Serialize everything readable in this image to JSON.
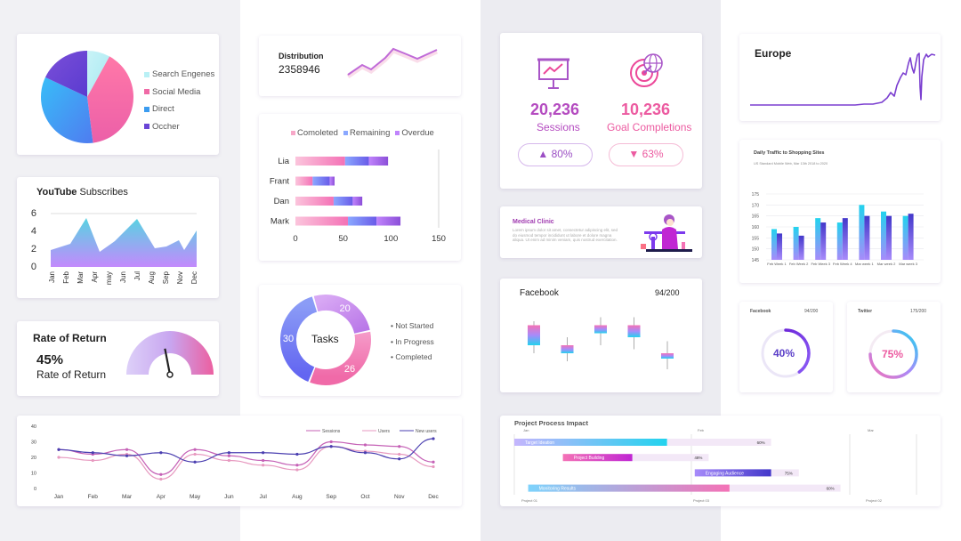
{
  "colors": {
    "pink": "#f472b6",
    "purple": "#7c3aed",
    "blue": "#60a5fa",
    "cyan": "#22d3ee",
    "violet": "#8b5cf6"
  },
  "pie_card": {
    "legend": [
      "Search Engenes",
      "Social Media",
      "Direct",
      "Occher"
    ],
    "legend_colors": [
      "#b9f0f5",
      "#f06aa6",
      "#3b9cf0",
      "#6a45d6"
    ],
    "values": [
      8,
      40,
      34,
      18
    ]
  },
  "youtube": {
    "title_bold": "YouTube",
    "title_rest": " Subscribes",
    "y_ticks": [
      "6",
      "4",
      "2",
      "0"
    ],
    "months": [
      "Jan",
      "Feb",
      "Mar",
      "Apr",
      "may",
      "Jun",
      "Jul",
      "Aug",
      "Sep",
      "Nov",
      "Dec"
    ]
  },
  "ror": {
    "title": "Rate of Return",
    "value": "45%",
    "subtitle": "Rate of Return",
    "gauge_value": 45
  },
  "distribution": {
    "title": "Distribution",
    "value": "2358946"
  },
  "tasks_bar": {
    "legend": [
      "Comoleted",
      "Remaining",
      "Overdue"
    ],
    "names": [
      "Lia",
      "Frant",
      "Dan",
      "Mark"
    ],
    "x_ticks": [
      "0",
      "50",
      "100",
      "150"
    ],
    "rows": [
      [
        52,
        25,
        20
      ],
      [
        18,
        18,
        5
      ],
      [
        40,
        20,
        10
      ],
      [
        55,
        30,
        25
      ]
    ],
    "xmax": 150
  },
  "donut": {
    "center": "Tasks",
    "values": [
      30,
      20,
      26
    ],
    "labels": [
      "30",
      "20",
      "26"
    ],
    "legend": [
      "Not Started",
      "In Progress",
      "Completed"
    ]
  },
  "stats": {
    "sessions_value": "20,236",
    "sessions_label": "Sessions",
    "goal_value": "10,236",
    "goal_label": "Goal Completions",
    "up_pill": "▲ 80%",
    "down_pill": "▼ 63%"
  },
  "medical": {
    "title": "Medical Clinic",
    "body": "Lorem ipsum dolor sit amet, consectetur adipiscing elit, sed do eiusmod tempor incididunt ut labore et dolore magna aliqua. Ut enim ad minim veniam, quis nostrud exercitation."
  },
  "facebook_candle": {
    "title": "Facebook",
    "count": "94/200",
    "candles": [
      [
        90,
        96,
        88,
        95
      ],
      [
        88,
        92,
        86,
        90
      ],
      [
        93,
        97,
        90,
        95
      ],
      [
        92,
        97,
        89,
        95
      ],
      [
        87,
        91,
        84,
        88
      ]
    ]
  },
  "project": {
    "title": "Project Process Impact",
    "months": [
      "Jan",
      "Feb",
      "Mar"
    ],
    "projects": [
      "Project 01",
      "Project 03",
      "Project 02"
    ],
    "tasks": [
      {
        "name": "Target Ideation",
        "pct": "60%",
        "start": 0,
        "done": 0.44,
        "total": 0.74
      },
      {
        "name": "Project Building",
        "pct": "48%",
        "start": 0.14,
        "done": 0.34,
        "total": 0.56
      },
      {
        "name": "Engaging Audience",
        "pct": "75%",
        "start": 0.52,
        "done": 0.74,
        "total": 0.82
      },
      {
        "name": "Monitoring Results",
        "pct": "60%",
        "start": 0.04,
        "done": 0.62,
        "total": 0.94
      }
    ]
  },
  "sessions_lines": {
    "y_ticks": [
      "40",
      "30",
      "20",
      "10",
      "0"
    ],
    "months": [
      "Jan",
      "Feb",
      "Mar",
      "Apr",
      "May",
      "Jun",
      "Jul",
      "Aug",
      "Sep",
      "Oct",
      "Nov",
      "Dec"
    ],
    "legend": [
      "Sessions",
      "Users",
      "New users"
    ],
    "series": [
      {
        "name": "Sessions",
        "values": [
          25,
          22,
          25,
          9,
          25,
          21,
          18,
          15,
          30,
          28,
          27,
          17
        ]
      },
      {
        "name": "Users",
        "values": [
          20,
          18,
          22,
          6,
          22,
          18,
          15,
          12,
          27,
          24,
          22,
          14
        ]
      },
      {
        "name": "New users",
        "values": [
          25,
          23,
          21,
          23,
          17,
          23,
          23,
          22,
          27,
          23,
          19,
          32
        ]
      }
    ]
  },
  "europe": {
    "title": "Europe"
  },
  "traffic": {
    "title": "Daily Traffic to Shopping Sites",
    "subtitle": "US Standard Mobile Web, Mar 13th 2018 to 2020",
    "y_ticks": [
      "175",
      "170",
      "165",
      "160",
      "155",
      "150",
      "145"
    ],
    "x_labels": [
      "Feb Week 1",
      "Feb Week 2",
      "Feb Week 3",
      "Feb Week 4",
      "Mar week 1",
      "Mar week 2",
      "Mar week 3"
    ],
    "a": [
      159,
      160,
      164,
      162,
      170,
      167,
      165
    ],
    "b": [
      157,
      156,
      162,
      164,
      165,
      165,
      166
    ],
    "ymin": 145,
    "ymax": 175
  },
  "facebook_ring": {
    "title": "Facebook",
    "count": "94/200",
    "value": "40%",
    "pct": 40
  },
  "twitter_ring": {
    "title": "Twitter",
    "count": "175/200",
    "value": "75%",
    "pct": 75
  }
}
